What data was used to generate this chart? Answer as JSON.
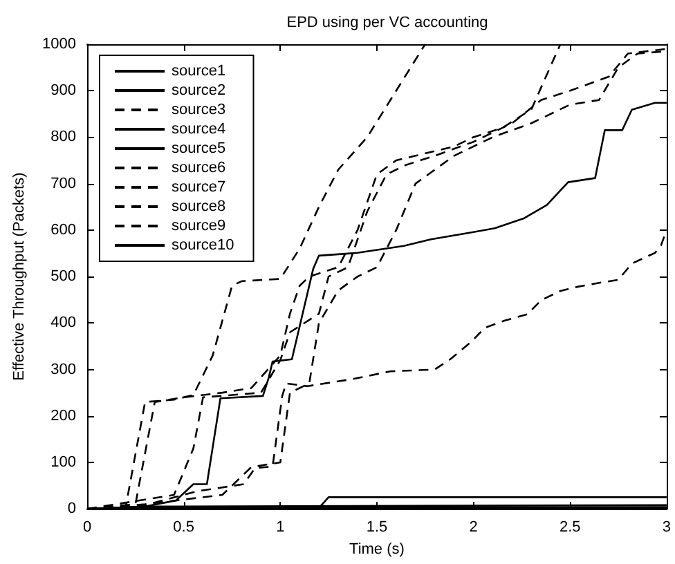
{
  "chart_data": {
    "type": "line",
    "title": "EPD using per VC accounting",
    "xlabel": "Time (s)",
    "ylabel": "Effective Throughput (Packets)",
    "xlim": [
      0,
      3
    ],
    "xticks": [
      0,
      0.5,
      1,
      1.5,
      2,
      2.5,
      3
    ],
    "ylim": [
      0,
      1000
    ],
    "yticks": [
      0,
      100,
      200,
      300,
      400,
      500,
      600,
      700,
      800,
      900,
      1000
    ],
    "grid": false,
    "legend": "top left",
    "marker": "none",
    "series": [
      {
        "name": "source1",
        "color": "#000000",
        "line_style": "solid",
        "x": [
          0,
          0.3,
          3
        ],
        "values": [
          0,
          5,
          8
        ]
      },
      {
        "name": "source2",
        "color": "#000000",
        "line_style": "solid",
        "x": [
          0,
          1.2,
          1.25,
          3
        ],
        "values": [
          0,
          2,
          25,
          25
        ]
      },
      {
        "name": "source3",
        "color": "#000000",
        "line_style": "dashed",
        "x": [
          0,
          0.2,
          0.3,
          0.45,
          0.55,
          0.65,
          0.75,
          0.8,
          1.0,
          1.1,
          1.2,
          1.3,
          1.45,
          1.6,
          1.75
        ],
        "values": [
          0,
          5,
          230,
          235,
          245,
          330,
          480,
          490,
          495,
          560,
          650,
          730,
          800,
          900,
          1000
        ]
      },
      {
        "name": "source4",
        "color": "#000000",
        "line_style": "solid",
        "x": [
          0,
          0.3,
          0.46,
          0.55,
          0.62,
          0.69,
          0.91,
          0.94,
          0.96,
          1.06,
          1.17,
          1.2,
          1.4,
          1.64,
          1.78,
          1.99,
          2.11,
          2.26,
          2.38,
          2.49,
          2.63,
          2.68,
          2.77,
          2.82,
          2.94,
          3
        ],
        "values": [
          0,
          5,
          18,
          53,
          53,
          238,
          243,
          282,
          317,
          322,
          516,
          545,
          551,
          566,
          580,
          595,
          604,
          625,
          654,
          703,
          712,
          815,
          815,
          859,
          874,
          874
        ]
      },
      {
        "name": "source5",
        "color": "#000000",
        "line_style": "solid",
        "x": [
          0,
          0.25,
          3
        ],
        "values": [
          0,
          3,
          4
        ]
      },
      {
        "name": "source6",
        "color": "#000000",
        "line_style": "dashed",
        "x": [
          0,
          0.3,
          0.57,
          0.81,
          0.87,
          0.96,
          1.01,
          1.03,
          1.14,
          1.37,
          1.57,
          1.8,
          1.88,
          1.99,
          2.06,
          2.16,
          2.28,
          2.35,
          2.45,
          2.54,
          2.66,
          2.75,
          2.82,
          2.94,
          2.97,
          3
        ],
        "values": [
          0,
          8,
          38,
          53,
          88,
          91,
          243,
          270,
          264,
          279,
          296,
          300,
          322,
          360,
          390,
          405,
          419,
          449,
          469,
          478,
          487,
          493,
          528,
          551,
          566,
          600
        ]
      },
      {
        "name": "source7",
        "color": "#000000",
        "line_style": "dashed",
        "x": [
          0,
          0.25,
          0.35,
          0.5,
          0.6,
          0.7,
          0.85,
          1.0,
          1.05,
          1.1,
          1.15,
          1.3,
          1.4,
          1.5,
          1.6,
          1.7,
          1.9,
          2.0,
          2.15,
          2.3,
          2.45
        ],
        "values": [
          0,
          10,
          230,
          240,
          245,
          250,
          260,
          330,
          420,
          480,
          500,
          520,
          600,
          720,
          750,
          760,
          780,
          800,
          820,
          860,
          1000
        ]
      },
      {
        "name": "source8",
        "color": "#000000",
        "line_style": "dashed",
        "x": [
          0,
          0.3,
          0.45,
          0.55,
          0.6,
          0.9,
          1.0,
          1.05,
          1.2,
          1.25,
          1.35,
          1.45,
          1.55,
          1.65,
          1.8,
          2.0,
          2.2,
          2.35,
          2.5,
          2.7,
          2.8,
          3
        ],
        "values": [
          0,
          20,
          30,
          130,
          240,
          250,
          320,
          380,
          420,
          500,
          520,
          640,
          720,
          740,
          760,
          790,
          830,
          880,
          900,
          930,
          980,
          990
        ]
      },
      {
        "name": "source9",
        "color": "#000000",
        "line_style": "dashed",
        "x": [
          0,
          0.3,
          0.5,
          0.7,
          0.85,
          1.0,
          1.05,
          1.15,
          1.2,
          1.3,
          1.4,
          1.5,
          1.6,
          1.7,
          1.8,
          1.9,
          2.1,
          2.3,
          2.5,
          2.65,
          2.75,
          2.85,
          3
        ],
        "values": [
          0,
          10,
          20,
          30,
          90,
          100,
          250,
          270,
          400,
          470,
          500,
          520,
          600,
          700,
          730,
          760,
          800,
          830,
          870,
          880,
          950,
          980,
          985
        ]
      },
      {
        "name": "source10",
        "color": "#000000",
        "line_style": "solid",
        "x": [
          0,
          0.2,
          3
        ],
        "values": [
          0,
          2,
          2
        ]
      }
    ]
  }
}
